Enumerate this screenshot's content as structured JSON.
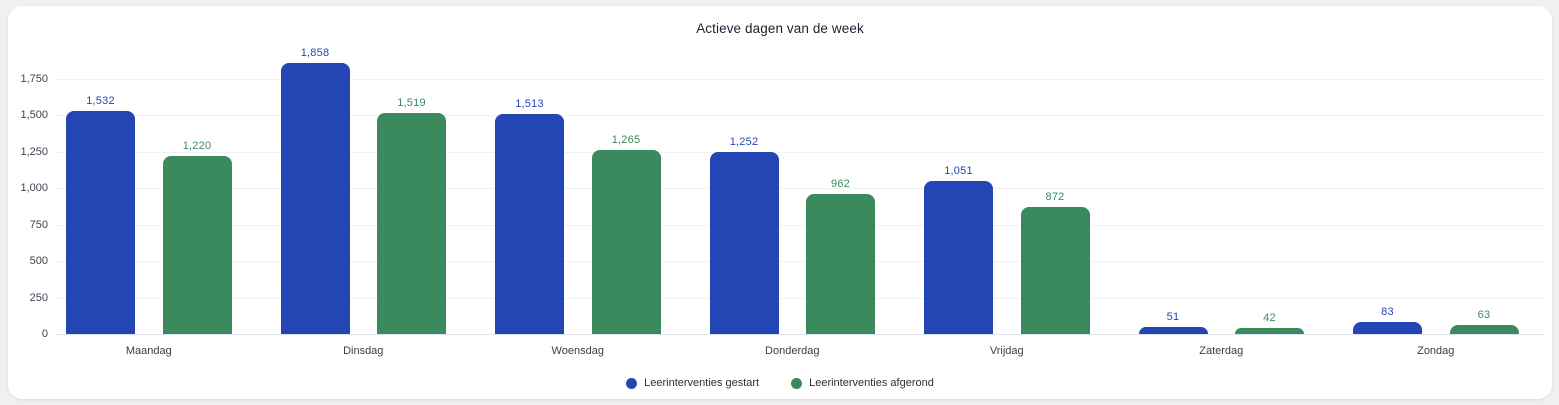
{
  "chart_data": {
    "type": "bar",
    "title": "Actieve dagen van de week",
    "categories": [
      "Maandag",
      "Dinsdag",
      "Woensdag",
      "Donderdag",
      "Vrijdag",
      "Zaterdag",
      "Zondag"
    ],
    "series": [
      {
        "name": "Leerinterventies gestart",
        "color": "#2346b4",
        "values": [
          1532,
          1858,
          1513,
          1252,
          1051,
          51,
          83
        ]
      },
      {
        "name": "Leerinterventies afgerond",
        "color": "#3a8a5e",
        "values": [
          1220,
          1519,
          1265,
          962,
          872,
          42,
          63
        ]
      }
    ],
    "yticks": [
      0,
      250,
      500,
      750,
      1000,
      1250,
      1500,
      1750
    ],
    "ylim": [
      0,
      1750
    ],
    "grid": true,
    "legend_position": "bottom-center"
  },
  "colors": {
    "series_started": "#2346b4",
    "series_completed": "#3a8a5e",
    "gridline": "#eff1f5",
    "baseline": "#dde2ee",
    "title_text": "#1b2130",
    "axis_text": "#3e434e",
    "page_background": "#eef0f2",
    "card_background": "#ffffff"
  }
}
